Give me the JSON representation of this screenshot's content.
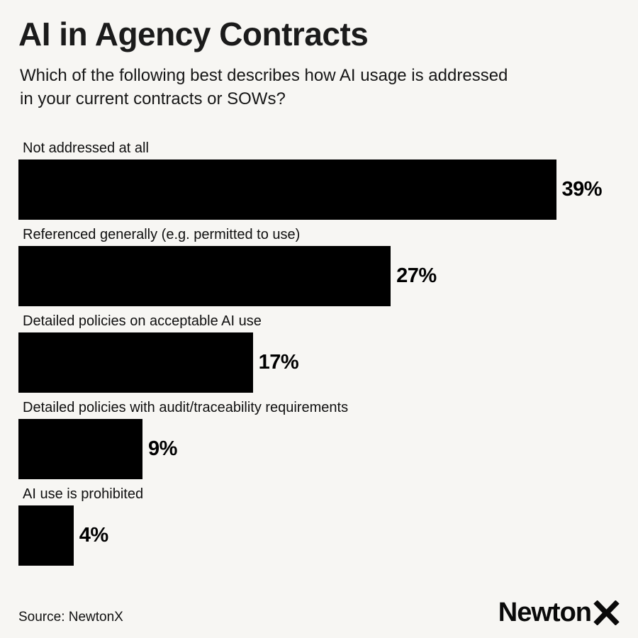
{
  "header": {
    "title": "AI in Agency Contracts",
    "subtitle": "Which of the following best describes how AI usage is addressed\nin your current contracts or SOWs?"
  },
  "chart_data": {
    "type": "bar",
    "orientation": "horizontal",
    "title": "AI in Agency Contracts",
    "subtitle": "Which of the following best describes how AI usage is addressed in your current contracts or SOWs?",
    "categories": [
      "Not addressed at all",
      "Referenced generally (e.g. permitted to use)",
      "Detailed policies on acceptable AI use",
      "Detailed policies with audit/traceability requirements",
      "AI use is prohibited"
    ],
    "values": [
      39,
      27,
      17,
      9,
      4
    ],
    "value_labels": [
      "39%",
      "27%",
      "17%",
      "9%",
      "4%"
    ],
    "unit": "%",
    "xlabel": "",
    "ylabel": "",
    "xlim": [
      0,
      40
    ],
    "grid": false,
    "legend": false,
    "bar_color": "#000000",
    "value_label_position": "outside-end"
  },
  "footer": {
    "source": "Source: NewtonX",
    "logo_text": "Newton",
    "logo_mark": "chevron-x"
  },
  "colors": {
    "background": "#f7f6f3",
    "text": "#141414",
    "bar": "#000000"
  }
}
